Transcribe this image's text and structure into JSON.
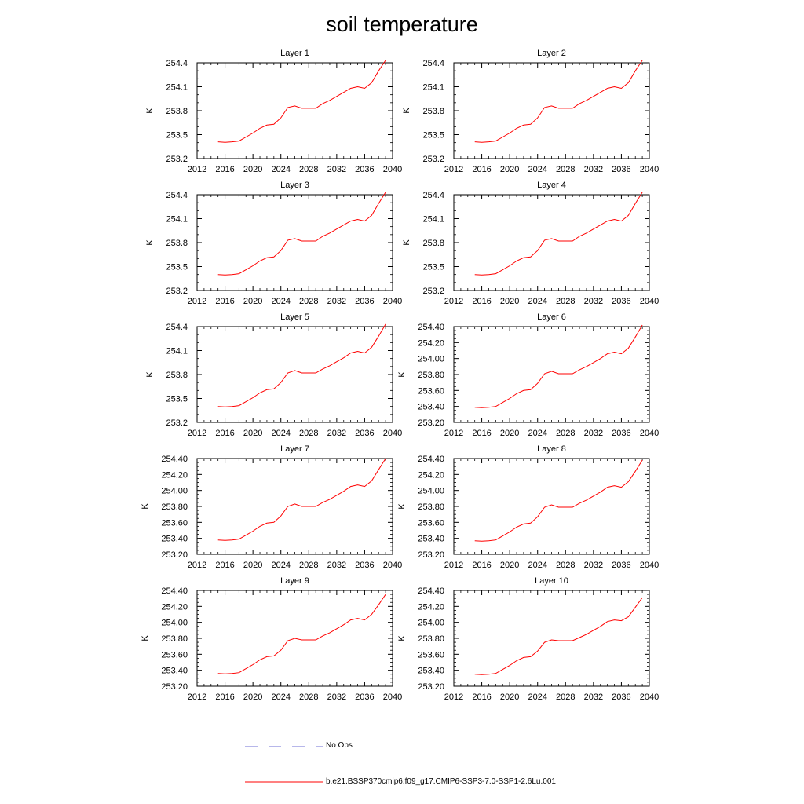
{
  "title": "soil temperature",
  "chart_data": {
    "type": "line",
    "x_ticks": [
      2012,
      2016,
      2020,
      2024,
      2028,
      2032,
      2036,
      2040
    ],
    "xlim": [
      2012,
      2040
    ],
    "ylim": [
      253.2,
      254.4
    ],
    "series_color": "#ff0000",
    "obs_color": "#6f6fd6",
    "panels": [
      {
        "title": "Layer 1",
        "ylabel": "K",
        "y_ticks": [
          "253.2",
          "253.5",
          "253.8",
          "254.1",
          "254.4"
        ],
        "x": [
          2015,
          2016,
          2017,
          2018,
          2019,
          2020,
          2021,
          2022,
          2023,
          2024,
          2025,
          2026,
          2027,
          2028,
          2029,
          2030,
          2031,
          2032,
          2033,
          2034,
          2035,
          2036,
          2037,
          2038,
          2039
        ],
        "y": [
          253.41,
          253.405,
          253.41,
          253.42,
          253.47,
          253.52,
          253.58,
          253.62,
          253.63,
          253.71,
          253.84,
          253.86,
          253.83,
          253.83,
          253.83,
          253.89,
          253.93,
          253.98,
          254.03,
          254.08,
          254.1,
          254.08,
          254.15,
          254.3,
          254.45
        ]
      },
      {
        "title": "Layer 2",
        "ylabel": "K",
        "y_ticks": [
          "253.2",
          "253.5",
          "253.8",
          "254.1",
          "254.4"
        ],
        "x": [
          2015,
          2016,
          2017,
          2018,
          2019,
          2020,
          2021,
          2022,
          2023,
          2024,
          2025,
          2026,
          2027,
          2028,
          2029,
          2030,
          2031,
          2032,
          2033,
          2034,
          2035,
          2036,
          2037,
          2038,
          2039
        ],
        "y": [
          253.41,
          253.405,
          253.41,
          253.42,
          253.47,
          253.52,
          253.58,
          253.62,
          253.63,
          253.71,
          253.84,
          253.86,
          253.83,
          253.83,
          253.83,
          253.89,
          253.93,
          253.98,
          254.03,
          254.08,
          254.1,
          254.08,
          254.15,
          254.3,
          254.45
        ]
      },
      {
        "title": "Layer 3",
        "ylabel": "K",
        "y_ticks": [
          "253.2",
          "253.5",
          "253.8",
          "254.1",
          "254.4"
        ],
        "x": [
          2015,
          2016,
          2017,
          2018,
          2019,
          2020,
          2021,
          2022,
          2023,
          2024,
          2025,
          2026,
          2027,
          2028,
          2029,
          2030,
          2031,
          2032,
          2033,
          2034,
          2035,
          2036,
          2037,
          2038,
          2039
        ],
        "y": [
          253.4,
          253.395,
          253.4,
          253.41,
          253.46,
          253.51,
          253.57,
          253.61,
          253.62,
          253.7,
          253.83,
          253.85,
          253.82,
          253.82,
          253.82,
          253.88,
          253.92,
          253.97,
          254.02,
          254.07,
          254.09,
          254.07,
          254.14,
          254.29,
          254.44
        ]
      },
      {
        "title": "Layer 4",
        "ylabel": "K",
        "y_ticks": [
          "253.2",
          "253.5",
          "253.8",
          "254.1",
          "254.4"
        ],
        "x": [
          2015,
          2016,
          2017,
          2018,
          2019,
          2020,
          2021,
          2022,
          2023,
          2024,
          2025,
          2026,
          2027,
          2028,
          2029,
          2030,
          2031,
          2032,
          2033,
          2034,
          2035,
          2036,
          2037,
          2038,
          2039
        ],
        "y": [
          253.4,
          253.395,
          253.4,
          253.41,
          253.46,
          253.51,
          253.57,
          253.61,
          253.62,
          253.7,
          253.83,
          253.85,
          253.82,
          253.82,
          253.82,
          253.88,
          253.92,
          253.97,
          254.02,
          254.07,
          254.09,
          254.07,
          254.14,
          254.29,
          254.44
        ]
      },
      {
        "title": "Layer 5",
        "ylabel": "K",
        "y_ticks": [
          "253.2",
          "253.5",
          "253.8",
          "254.1",
          "254.4"
        ],
        "x": [
          2015,
          2016,
          2017,
          2018,
          2019,
          2020,
          2021,
          2022,
          2023,
          2024,
          2025,
          2026,
          2027,
          2028,
          2029,
          2030,
          2031,
          2032,
          2033,
          2034,
          2035,
          2036,
          2037,
          2038,
          2039
        ],
        "y": [
          253.4,
          253.395,
          253.4,
          253.41,
          253.46,
          253.51,
          253.57,
          253.61,
          253.62,
          253.7,
          253.82,
          253.85,
          253.82,
          253.82,
          253.82,
          253.87,
          253.91,
          253.96,
          254.01,
          254.07,
          254.09,
          254.07,
          254.14,
          254.28,
          254.43
        ]
      },
      {
        "title": "Layer 6",
        "ylabel": "K",
        "y_ticks": [
          "253.20",
          "253.40",
          "253.60",
          "253.80",
          "254.00",
          "254.20",
          "254.40"
        ],
        "x": [
          2015,
          2016,
          2017,
          2018,
          2019,
          2020,
          2021,
          2022,
          2023,
          2024,
          2025,
          2026,
          2027,
          2028,
          2029,
          2030,
          2031,
          2032,
          2033,
          2034,
          2035,
          2036,
          2037,
          2038,
          2039
        ],
        "y": [
          253.39,
          253.385,
          253.39,
          253.4,
          253.45,
          253.5,
          253.56,
          253.6,
          253.61,
          253.69,
          253.81,
          253.84,
          253.81,
          253.81,
          253.81,
          253.86,
          253.9,
          253.95,
          254.0,
          254.06,
          254.08,
          254.06,
          254.13,
          254.27,
          254.42
        ]
      },
      {
        "title": "Layer 7",
        "ylabel": "K",
        "y_ticks": [
          "253.20",
          "253.40",
          "253.60",
          "253.80",
          "254.00",
          "254.20",
          "254.40"
        ],
        "x": [
          2015,
          2016,
          2017,
          2018,
          2019,
          2020,
          2021,
          2022,
          2023,
          2024,
          2025,
          2026,
          2027,
          2028,
          2029,
          2030,
          2031,
          2032,
          2033,
          2034,
          2035,
          2036,
          2037,
          2038,
          2039
        ],
        "y": [
          253.38,
          253.375,
          253.38,
          253.39,
          253.44,
          253.49,
          253.55,
          253.59,
          253.6,
          253.68,
          253.8,
          253.83,
          253.8,
          253.8,
          253.8,
          253.85,
          253.89,
          253.94,
          253.99,
          254.05,
          254.07,
          254.05,
          254.12,
          254.26,
          254.4
        ]
      },
      {
        "title": "Layer 8",
        "ylabel": "K",
        "y_ticks": [
          "253.20",
          "253.40",
          "253.60",
          "253.80",
          "254.00",
          "254.20",
          "254.40"
        ],
        "x": [
          2015,
          2016,
          2017,
          2018,
          2019,
          2020,
          2021,
          2022,
          2023,
          2024,
          2025,
          2026,
          2027,
          2028,
          2029,
          2030,
          2031,
          2032,
          2033,
          2034,
          2035,
          2036,
          2037,
          2038,
          2039
        ],
        "y": [
          253.37,
          253.365,
          253.37,
          253.38,
          253.43,
          253.48,
          253.54,
          253.58,
          253.59,
          253.67,
          253.79,
          253.82,
          253.79,
          253.79,
          253.79,
          253.84,
          253.88,
          253.93,
          253.98,
          254.04,
          254.06,
          254.04,
          254.11,
          254.24,
          254.38
        ]
      },
      {
        "title": "Layer 9",
        "ylabel": "K",
        "y_ticks": [
          "253.20",
          "253.40",
          "253.60",
          "253.80",
          "254.00",
          "254.20",
          "254.40"
        ],
        "x": [
          2015,
          2016,
          2017,
          2018,
          2019,
          2020,
          2021,
          2022,
          2023,
          2024,
          2025,
          2026,
          2027,
          2028,
          2029,
          2030,
          2031,
          2032,
          2033,
          2034,
          2035,
          2036,
          2037,
          2038,
          2039
        ],
        "y": [
          253.36,
          253.355,
          253.36,
          253.37,
          253.42,
          253.47,
          253.53,
          253.57,
          253.58,
          253.65,
          253.77,
          253.8,
          253.78,
          253.78,
          253.78,
          253.83,
          253.87,
          253.92,
          253.97,
          254.03,
          254.05,
          254.03,
          254.1,
          254.22,
          254.35
        ]
      },
      {
        "title": "Layer 10",
        "ylabel": "K",
        "y_ticks": [
          "253.20",
          "253.40",
          "253.60",
          "253.80",
          "254.00",
          "254.20",
          "254.40"
        ],
        "x": [
          2015,
          2016,
          2017,
          2018,
          2019,
          2020,
          2021,
          2022,
          2023,
          2024,
          2025,
          2026,
          2027,
          2028,
          2029,
          2030,
          2031,
          2032,
          2033,
          2034,
          2035,
          2036,
          2037,
          2038,
          2039
        ],
        "y": [
          253.35,
          253.345,
          253.35,
          253.36,
          253.41,
          253.46,
          253.52,
          253.56,
          253.57,
          253.64,
          253.75,
          253.78,
          253.77,
          253.77,
          253.77,
          253.81,
          253.85,
          253.9,
          253.95,
          254.01,
          254.03,
          254.02,
          254.07,
          254.19,
          254.31
        ]
      }
    ]
  },
  "legend": {
    "obs_label": "No Obs",
    "model_label": "b.e21.BSSP370cmip6.f09_g17.CMIP6-SSP3-7.0-SSP1-2.6Lu.001"
  }
}
